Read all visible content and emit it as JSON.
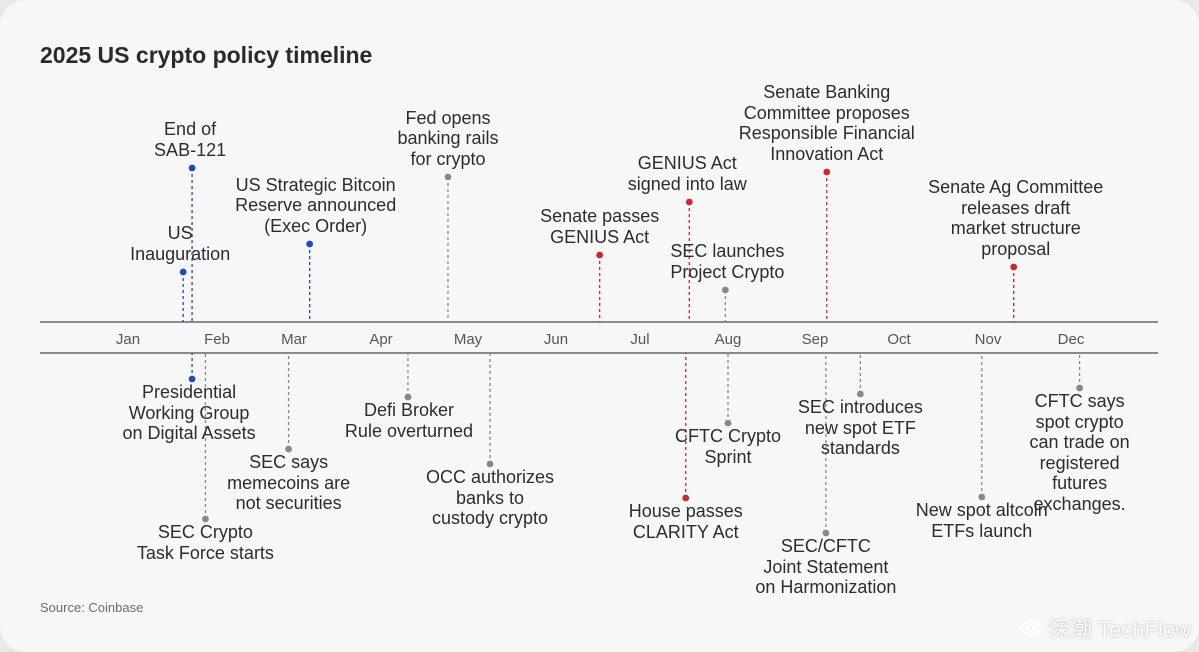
{
  "title": "2025 US crypto policy timeline",
  "source": "Source: Coinbase",
  "watermark": "深潮 TechFlow",
  "colors": {
    "blue": "#2149c4",
    "red": "#cc2a2a",
    "gray": "#888888",
    "axis": "#4a4a4a"
  },
  "months": [
    "Jan",
    "Feb",
    "Mar",
    "Apr",
    "May",
    "Jun",
    "Jul",
    "Aug",
    "Sep",
    "Oct",
    "Nov",
    "Dec"
  ],
  "events": [
    {
      "label": "US\nInauguration",
      "side": "above",
      "color": "blue",
      "month": 1.62
    },
    {
      "label": "End of\nSAB-121",
      "side": "above",
      "color": "blue",
      "month": 1.72
    },
    {
      "label": "US Strategic Bitcoin\nReserve announced\n(Exec Order)",
      "side": "above",
      "color": "blue",
      "month": 3.18
    },
    {
      "label": "Fed opens\nbanking rails\nfor crypto",
      "side": "above",
      "color": "gray",
      "month": 4.77
    },
    {
      "label": "Senate passes\nGENIUS Act",
      "side": "above",
      "color": "red",
      "month": 6.52
    },
    {
      "label": "GENIUS Act\nsigned into law",
      "side": "above",
      "color": "red",
      "month": 7.56
    },
    {
      "label": "SEC launches\nProject Crypto",
      "side": "above",
      "color": "gray",
      "month": 7.97
    },
    {
      "label": "Senate Banking\nCommittee proposes\nResponsible Financial\nInnovation Act",
      "side": "above",
      "color": "red",
      "month": 9.14
    },
    {
      "label": "Senate Ag Committee\nreleases draft\nmarket structure\nproposal",
      "side": "above",
      "color": "red",
      "month": 11.31
    },
    {
      "label": "Presidential\nWorking Group\non Digital Assets",
      "side": "below",
      "color": "blue",
      "month": 1.72
    },
    {
      "label": "SEC Crypto\nTask Force starts",
      "side": "below",
      "color": "gray",
      "month": 1.87
    },
    {
      "label": "SEC says\nmemecoins are\nnot securities",
      "side": "below",
      "color": "gray",
      "month": 2.93
    },
    {
      "label": "Defi Broker\nRule overturned",
      "side": "below",
      "color": "gray",
      "month": 4.31
    },
    {
      "label": "OCC authorizes\nbanks to\ncustody crypto",
      "side": "below",
      "color": "gray",
      "month": 5.25
    },
    {
      "label": "House passes\nCLARITY Act",
      "side": "below",
      "color": "red",
      "month": 7.52
    },
    {
      "label": "CFTC Crypto\nSprint",
      "side": "below",
      "color": "gray",
      "month": 8.0
    },
    {
      "label": "SEC/CFTC\nJoint Statement\non Harmonization",
      "side": "below",
      "color": "gray",
      "month": 9.13
    },
    {
      "label": "SEC introduces\nnew spot ETF\nstandards",
      "side": "below",
      "color": "gray",
      "month": 9.54
    },
    {
      "label": "New spot altcoin\nETFs launch",
      "side": "below",
      "color": "gray",
      "month": 10.93
    },
    {
      "label": "CFTC says\nspot crypto\ncan trade on\nregistered futures\nexchanges.",
      "side": "below",
      "color": "gray",
      "month": 12.1
    }
  ]
}
